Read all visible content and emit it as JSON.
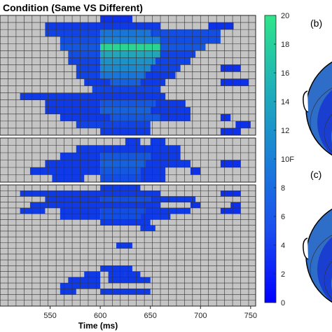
{
  "chart_data": {
    "type": "heatmap",
    "title": "Condition (Same VS Different)",
    "xlabel": "Time (ms)",
    "x_ticks": [
      550,
      600,
      650,
      700,
      750
    ],
    "xlim": [
      500,
      755
    ],
    "bin_ms": 8,
    "colorbar": {
      "min": 0,
      "max": 20,
      "ticks": [
        "0",
        "2",
        "4",
        "6",
        "8",
        "10F",
        "12",
        "14",
        "16",
        "18",
        "20"
      ]
    },
    "colors": {
      "insignificant": "#c4c4c4",
      "low": "#0a1cf0",
      "mid": "#1a7fd6",
      "high": "#28e08a"
    },
    "panel_labels": [
      "(b)",
      "(c)"
    ],
    "groups": [
      {
        "name": "",
        "rows": [
          {
            "segments": [
              [
                600,
                632,
                2
              ]
            ]
          },
          {
            "segments": [
              [
                545,
                660,
                3
              ],
              [
                708,
                733,
                2
              ]
            ]
          },
          {
            "segments": [
              [
                545,
                600,
                4
              ],
              [
                600,
                650,
                9
              ],
              [
                650,
                720,
                5
              ]
            ]
          },
          {
            "segments": [
              [
                560,
                600,
                5
              ],
              [
                600,
                660,
                10
              ],
              [
                660,
                720,
                5
              ]
            ]
          },
          {
            "segments": [
              [
                560,
                600,
                6
              ],
              [
                600,
                660,
                19
              ],
              [
                660,
                705,
                6
              ]
            ]
          },
          {
            "segments": [
              [
                568,
                600,
                5
              ],
              [
                600,
                660,
                14
              ],
              [
                660,
                695,
                4
              ]
            ]
          },
          {
            "segments": [
              [
                568,
                600,
                4
              ],
              [
                600,
                655,
                12
              ],
              [
                655,
                690,
                4
              ]
            ]
          },
          {
            "segments": [
              [
                576,
                600,
                4
              ],
              [
                600,
                650,
                11
              ],
              [
                650,
                680,
                4
              ],
              [
                720,
                740,
                2
              ]
            ]
          },
          {
            "segments": [
              [
                576,
                600,
                4
              ],
              [
                600,
                645,
                9
              ],
              [
                645,
                675,
                3
              ]
            ]
          },
          {
            "segments": [
              [
                584,
                610,
                3
              ],
              [
                610,
                640,
                7
              ],
              [
                640,
                665,
                3
              ],
              [
                720,
                748,
                2
              ]
            ]
          },
          {
            "segments": [
              [
                592,
                660,
                4
              ]
            ]
          },
          {
            "segments": [
              [
                520,
                665,
                3
              ]
            ]
          },
          {
            "segments": [
              [
                545,
                600,
                3
              ],
              [
                600,
                655,
                6
              ],
              [
                655,
                685,
                3
              ]
            ]
          },
          {
            "segments": [
              [
                545,
                600,
                3
              ],
              [
                600,
                650,
                7
              ],
              [
                650,
                690,
                3
              ]
            ]
          },
          {
            "segments": [
              [
                560,
                610,
                3
              ],
              [
                610,
                660,
                6
              ],
              [
                660,
                690,
                3
              ],
              [
                720,
                730,
                2
              ]
            ]
          },
          {
            "segments": [
              [
                576,
                650,
                4
              ],
              [
                735,
                750,
                2
              ]
            ]
          },
          {
            "segments": [
              [
                600,
                650,
                3
              ],
              [
                720,
                740,
                2
              ]
            ]
          }
        ]
      },
      {
        "name": "",
        "rows": [
          {
            "segments": [
              [
                625,
                640,
                3
              ],
              [
                650,
                665,
                3
              ]
            ]
          },
          {
            "segments": [
              [
                576,
                680,
                3
              ]
            ]
          },
          {
            "segments": [
              [
                560,
                600,
                3
              ],
              [
                600,
                650,
                6
              ],
              [
                650,
                680,
                3
              ]
            ]
          },
          {
            "segments": [
              [
                545,
                600,
                3
              ],
              [
                600,
                645,
                7
              ],
              [
                645,
                690,
                3
              ],
              [
                720,
                740,
                2
              ]
            ]
          },
          {
            "segments": [
              [
                530,
                600,
                3
              ],
              [
                600,
                640,
                6
              ],
              [
                640,
                665,
                3
              ],
              [
                690,
                700,
                2
              ]
            ]
          },
          {
            "segments": [
              [
                552,
                584,
                3
              ],
              [
                600,
                640,
                5
              ],
              [
                640,
                665,
                3
              ]
            ]
          }
        ]
      },
      {
        "name": "",
        "rows": [
          {
            "segments": [
              [
                600,
                640,
                3
              ]
            ]
          },
          {
            "segments": [
              [
                520,
                660,
                3
              ],
              [
                720,
                740,
                2
              ]
            ]
          },
          {
            "segments": [
              [
                545,
                600,
                3
              ],
              [
                600,
                650,
                5
              ],
              [
                650,
                695,
                3
              ]
            ]
          },
          {
            "segments": [
              [
                530,
                660,
                3
              ],
              [
                690,
                700,
                2
              ],
              [
                730,
                740,
                2
              ]
            ]
          },
          {
            "segments": [
              [
                520,
                545,
                3
              ],
              [
                560,
                600,
                3
              ],
              [
                600,
                645,
                5
              ],
              [
                645,
                690,
                3
              ],
              [
                720,
                740,
                2
              ]
            ]
          },
          {
            "segments": [
              [
                560,
                600,
                3
              ],
              [
                600,
                640,
                5
              ],
              [
                640,
                670,
                3
              ]
            ]
          },
          {
            "segments": [
              [
                600,
                650,
                3
              ]
            ]
          },
          {
            "segments": [
              [
                640,
                655,
                3
              ]
            ]
          },
          {
            "segments": []
          },
          {
            "segments": []
          },
          {
            "segments": [
              [
                616,
                632,
                3
              ]
            ]
          },
          {
            "segments": []
          },
          {
            "segments": []
          },
          {
            "segments": []
          },
          {
            "segments": [
              [
                600,
                632,
                3
              ]
            ]
          },
          {
            "segments": [
              [
                584,
                600,
                3
              ],
              [
                608,
                625,
                3
              ],
              [
                625,
                640,
                3
              ]
            ]
          },
          {
            "segments": [
              [
                568,
                600,
                3
              ],
              [
                608,
                650,
                3
              ]
            ]
          },
          {
            "segments": [
              [
                560,
                600,
                3
              ]
            ]
          },
          {
            "segments": [
              [
                560,
                576,
                3
              ],
              [
                600,
                650,
                3
              ]
            ]
          },
          {
            "segments": []
          },
          {
            "segments": []
          }
        ]
      }
    ]
  }
}
